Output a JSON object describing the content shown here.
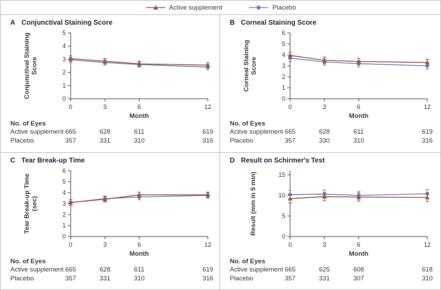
{
  "legend": {
    "items": [
      {
        "label": "Active supplement",
        "color": "#9d544b",
        "marker": "triangle"
      },
      {
        "label": "Placebo",
        "color": "#7383b5",
        "marker": "circle"
      }
    ]
  },
  "colors": {
    "active": "#9d544b",
    "placebo": "#7383b5",
    "axis": "#55555a",
    "divider": "#c7c7c7"
  },
  "chart_data": [
    {
      "type": "line",
      "panel": "A",
      "title": "Conjunctival Staining Score",
      "ylabel": "Conjunctival Staining Score",
      "ylabel_lines": [
        "Conjunctival Staining",
        "Score"
      ],
      "xlabel": "Month",
      "x": [
        0,
        3,
        6,
        12
      ],
      "ylim": [
        0,
        5
      ],
      "axis_max": 5,
      "yticks": [
        0,
        1,
        2,
        3,
        4,
        5
      ],
      "series": [
        {
          "name": "Active supplement",
          "marker": "triangle",
          "color": "#9d544b",
          "values": [
            3.05,
            2.85,
            2.65,
            2.55
          ],
          "err": [
            0.2,
            0.2,
            0.2,
            0.2
          ]
        },
        {
          "name": "Placebo",
          "marker": "circle",
          "color": "#7383b5",
          "values": [
            2.95,
            2.75,
            2.6,
            2.4
          ],
          "err": [
            0.2,
            0.2,
            0.2,
            0.2
          ]
        }
      ],
      "no_of_eyes": {
        "header": "No. of Eyes",
        "rows": [
          {
            "label": "Active supplement",
            "values": [
              665,
              628,
              611,
              619
            ]
          },
          {
            "label": "Placebo",
            "values": [
              357,
              331,
              310,
              316
            ]
          }
        ]
      }
    },
    {
      "type": "line",
      "panel": "B",
      "title": "Corneal Staining Score",
      "ylabel": "Corneal Staining Score",
      "ylabel_lines": [
        "Corneal Staining",
        "Score"
      ],
      "xlabel": "Month",
      "x": [
        0,
        3,
        6,
        12
      ],
      "ylim": [
        0,
        6
      ],
      "axis_max": 6,
      "yticks": [
        0,
        1,
        2,
        3,
        4,
        5,
        6
      ],
      "series": [
        {
          "name": "Active supplement",
          "marker": "triangle",
          "color": "#9d544b",
          "values": [
            3.95,
            3.5,
            3.4,
            3.3
          ],
          "err": [
            0.3,
            0.3,
            0.3,
            0.3
          ]
        },
        {
          "name": "Placebo",
          "marker": "circle",
          "color": "#7383b5",
          "values": [
            3.7,
            3.35,
            3.2,
            3.0
          ],
          "err": [
            0.3,
            0.3,
            0.3,
            0.3
          ]
        }
      ],
      "no_of_eyes": {
        "header": "No. of Eyes",
        "rows": [
          {
            "label": "Active supplement",
            "values": [
              665,
              628,
              611,
              619
            ]
          },
          {
            "label": "Placebo",
            "values": [
              357,
              330,
              310,
              316
            ]
          }
        ]
      }
    },
    {
      "type": "line",
      "panel": "C",
      "title": "Tear Break-up Time",
      "ylabel": "Tear Break-up Time (sec)",
      "ylabel_lines": [
        "Tear Break-up Time",
        "(sec)"
      ],
      "xlabel": "Month",
      "x": [
        0,
        3,
        6,
        12
      ],
      "ylim": [
        0,
        6
      ],
      "axis_max": 6,
      "yticks": [
        0,
        1,
        2,
        3,
        4,
        5,
        6
      ],
      "series": [
        {
          "name": "Active supplement",
          "marker": "triangle",
          "color": "#9d544b",
          "values": [
            3.1,
            3.4,
            3.8,
            3.8
          ],
          "err": [
            0.25,
            0.25,
            0.25,
            0.25
          ]
        },
        {
          "name": "Placebo",
          "marker": "circle",
          "color": "#7383b5",
          "values": [
            3.1,
            3.45,
            3.6,
            3.75
          ],
          "err": [
            0.25,
            0.25,
            0.25,
            0.25
          ]
        }
      ],
      "no_of_eyes": {
        "header": "No. of Eyes",
        "rows": [
          {
            "label": "Active supplement",
            "values": [
              665,
              628,
              611,
              619
            ]
          },
          {
            "label": "Placebo",
            "values": [
              357,
              331,
              310,
              316
            ]
          }
        ]
      }
    },
    {
      "type": "line",
      "panel": "D",
      "title": "Result on Schirmer's Test",
      "ylabel": "Result (mm in 5 min)",
      "ylabel_lines": [
        "Result (mm in 5 min)"
      ],
      "xlabel": "Month",
      "x": [
        0,
        3,
        6,
        12
      ],
      "ylim": [
        0,
        15
      ],
      "axis_max": 16,
      "yticks": [
        0,
        5,
        10,
        15
      ],
      "series": [
        {
          "name": "Active supplement",
          "marker": "triangle",
          "color": "#9d544b",
          "values": [
            9.2,
            9.7,
            9.6,
            9.5
          ],
          "err": [
            1.0,
            1.0,
            1.0,
            1.0
          ]
        },
        {
          "name": "Placebo",
          "marker": "circle",
          "color": "#7383b5",
          "values": [
            10.2,
            10.3,
            10.0,
            10.4
          ],
          "err": [
            1.0,
            1.0,
            1.0,
            1.0
          ]
        }
      ],
      "no_of_eyes": {
        "header": "No. of Eyes",
        "rows": [
          {
            "label": "Active supplement",
            "values": [
              665,
              625,
              608,
              618
            ]
          },
          {
            "label": "Placebo",
            "values": [
              357,
              331,
              307,
              310
            ]
          }
        ]
      }
    }
  ]
}
